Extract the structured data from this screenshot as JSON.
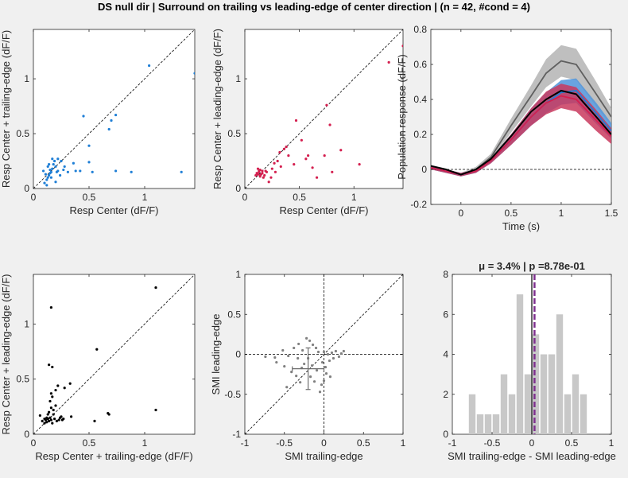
{
  "figure_title": "DS null dir | Surround on trailing vs leading-edge of center direction | (n = 42, #cond = 4)",
  "colors": {
    "background": "#f0f0f0",
    "axes": "#ffffff",
    "axis_line": "#262626",
    "blue": "#1f7fd6",
    "red": "#d41f4f",
    "black": "#000000",
    "gray_dots": "#808080",
    "hist_bars": "#c8c8c8",
    "mean_line": "#7e2f8e"
  },
  "chart_data": [
    {
      "type": "scatter",
      "xlabel": "Resp Center (dF/F)",
      "ylabel": "Resp Center + trailing-edge (dF/F)",
      "xlim": [
        0,
        1.45
      ],
      "ylim": [
        0,
        1.45
      ],
      "xticks": [
        "0",
        "0.5",
        "1"
      ],
      "yticks": [
        "0",
        "0.5",
        "1"
      ],
      "diagonal": true,
      "color": "#1f7fd6",
      "points": [
        [
          0.1,
          0.05
        ],
        [
          0.12,
          0.08
        ],
        [
          0.13,
          0.1
        ],
        [
          0.14,
          0.12
        ],
        [
          0.15,
          0.14
        ],
        [
          0.16,
          0.15
        ],
        [
          0.15,
          0.17
        ],
        [
          0.17,
          0.18
        ],
        [
          0.13,
          0.2
        ],
        [
          0.18,
          0.22
        ],
        [
          0.2,
          0.2
        ],
        [
          0.22,
          0.16
        ],
        [
          0.19,
          0.25
        ],
        [
          0.17,
          0.27
        ],
        [
          0.22,
          0.27
        ],
        [
          0.25,
          0.25
        ],
        [
          0.14,
          0.22
        ],
        [
          0.16,
          0.1
        ],
        [
          0.11,
          0.13
        ],
        [
          0.21,
          0.15
        ],
        [
          0.27,
          0.17
        ],
        [
          0.31,
          0.15
        ],
        [
          0.36,
          0.23
        ],
        [
          0.38,
          0.16
        ],
        [
          0.42,
          0.16
        ],
        [
          0.45,
          0.66
        ],
        [
          0.5,
          0.39
        ],
        [
          0.5,
          0.24
        ],
        [
          0.53,
          0.15
        ],
        [
          0.68,
          0.54
        ],
        [
          0.7,
          0.62
        ],
        [
          0.74,
          0.67
        ],
        [
          0.74,
          0.16
        ],
        [
          0.88,
          0.15
        ],
        [
          1.04,
          1.12
        ],
        [
          1.33,
          0.15
        ],
        [
          1.45,
          1.05
        ],
        [
          0.12,
          0.03
        ],
        [
          0.2,
          0.06
        ],
        [
          0.24,
          0.12
        ],
        [
          0.28,
          0.2
        ],
        [
          0.09,
          0.16
        ]
      ]
    },
    {
      "type": "scatter",
      "xlabel": "Resp Center (dF/F)",
      "ylabel": "Resp Center + leading-edge (dF/F)",
      "xlim": [
        0,
        1.45
      ],
      "ylim": [
        0,
        1.45
      ],
      "xticks": [
        "0",
        "0.5",
        "1"
      ],
      "yticks": [
        "0",
        "0.5",
        "1"
      ],
      "diagonal": true,
      "color": "#d41f4f",
      "points": [
        [
          0.1,
          0.12
        ],
        [
          0.11,
          0.14
        ],
        [
          0.12,
          0.13
        ],
        [
          0.13,
          0.15
        ],
        [
          0.14,
          0.12
        ],
        [
          0.15,
          0.13
        ],
        [
          0.16,
          0.14
        ],
        [
          0.12,
          0.18
        ],
        [
          0.14,
          0.17
        ],
        [
          0.17,
          0.1
        ],
        [
          0.18,
          0.12
        ],
        [
          0.2,
          0.15
        ],
        [
          0.22,
          0.06
        ],
        [
          0.25,
          0.18
        ],
        [
          0.27,
          0.23
        ],
        [
          0.3,
          0.25
        ],
        [
          0.33,
          0.2
        ],
        [
          0.36,
          0.36
        ],
        [
          0.4,
          0.3
        ],
        [
          0.45,
          0.22
        ],
        [
          0.47,
          0.62
        ],
        [
          0.52,
          0.44
        ],
        [
          0.56,
          0.27
        ],
        [
          0.58,
          0.3
        ],
        [
          0.62,
          0.19
        ],
        [
          0.66,
          0.1
        ],
        [
          0.73,
          0.3
        ],
        [
          0.75,
          0.76
        ],
        [
          0.78,
          0.58
        ],
        [
          0.8,
          0.15
        ],
        [
          0.88,
          0.35
        ],
        [
          1.05,
          0.22
        ],
        [
          1.32,
          1.15
        ],
        [
          1.45,
          1.3
        ],
        [
          0.13,
          0.16
        ],
        [
          0.14,
          0.11
        ],
        [
          0.16,
          0.16
        ],
        [
          0.19,
          0.16
        ],
        [
          0.24,
          0.1
        ],
        [
          0.28,
          0.15
        ],
        [
          0.32,
          0.33
        ],
        [
          0.38,
          0.38
        ]
      ]
    },
    {
      "type": "line",
      "xlabel": "Time (s)",
      "ylabel": "Population response (dF/F)",
      "xlim": [
        -0.3,
        1.5
      ],
      "ylim": [
        -0.2,
        0.8
      ],
      "xticks": [
        "0",
        "0.5",
        "1",
        "1.5"
      ],
      "yticks": [
        "-0.2",
        "0",
        "0.2",
        "0.4",
        "0.6",
        "0.8"
      ],
      "x": [
        -0.3,
        -0.15,
        0,
        0.15,
        0.3,
        0.5,
        0.7,
        0.85,
        1.0,
        1.15,
        1.35,
        1.5
      ],
      "series": [
        {
          "color": "#5f5f5f",
          "band": "#b4b4b4",
          "values": [
            0.01,
            -0.01,
            -0.03,
            0.0,
            0.07,
            0.25,
            0.42,
            0.55,
            0.62,
            0.6,
            0.43,
            0.3
          ],
          "sem": [
            0.01,
            0.01,
            0.01,
            0.015,
            0.02,
            0.04,
            0.06,
            0.08,
            0.09,
            0.09,
            0.07,
            0.05
          ]
        },
        {
          "color": "#1f7fd6",
          "band": "#4f94da",
          "values": [
            0.01,
            -0.01,
            -0.03,
            -0.01,
            0.05,
            0.17,
            0.3,
            0.38,
            0.44,
            0.45,
            0.32,
            0.22
          ],
          "sem": [
            0.01,
            0.01,
            0.01,
            0.01,
            0.015,
            0.03,
            0.05,
            0.06,
            0.07,
            0.07,
            0.06,
            0.045
          ]
        },
        {
          "color": "#d41f4f",
          "band": "#c93a5e",
          "values": [
            0.01,
            -0.01,
            -0.03,
            -0.01,
            0.05,
            0.17,
            0.3,
            0.38,
            0.42,
            0.4,
            0.28,
            0.19
          ],
          "sem": [
            0.01,
            0.01,
            0.01,
            0.01,
            0.015,
            0.03,
            0.05,
            0.065,
            0.07,
            0.07,
            0.06,
            0.045
          ]
        },
        {
          "color": "#000000",
          "band": null,
          "values": [
            0.02,
            0.0,
            -0.03,
            0.0,
            0.06,
            0.19,
            0.33,
            0.4,
            0.45,
            0.43,
            0.3,
            0.2
          ],
          "sem": null
        }
      ],
      "zero_line": true
    },
    {
      "type": "scatter",
      "xlabel": "Resp Center + trailing-edge (dF/F)",
      "ylabel": "Resp Center + leading-edge (dF/F)",
      "xlim": [
        0,
        1.45
      ],
      "ylim": [
        0,
        1.45
      ],
      "xticks": [
        "0",
        "0.5",
        "1"
      ],
      "yticks": [
        "0",
        "0.5",
        "1"
      ],
      "diagonal": true,
      "color": "#000000",
      "points": [
        [
          0.06,
          0.17
        ],
        [
          0.08,
          0.12
        ],
        [
          0.1,
          0.1
        ],
        [
          0.12,
          0.11
        ],
        [
          0.13,
          0.14
        ],
        [
          0.14,
          0.12
        ],
        [
          0.15,
          0.15
        ],
        [
          0.16,
          0.13
        ],
        [
          0.17,
          0.1
        ],
        [
          0.18,
          0.18
        ],
        [
          0.14,
          0.2
        ],
        [
          0.16,
          0.24
        ],
        [
          0.18,
          0.22
        ],
        [
          0.2,
          0.26
        ],
        [
          0.15,
          0.3
        ],
        [
          0.17,
          0.34
        ],
        [
          0.2,
          0.4
        ],
        [
          0.22,
          0.44
        ],
        [
          0.16,
          0.37
        ],
        [
          0.14,
          0.63
        ],
        [
          0.17,
          0.61
        ],
        [
          0.16,
          1.15
        ],
        [
          0.24,
          0.15
        ],
        [
          0.26,
          0.13
        ],
        [
          0.28,
          0.42
        ],
        [
          0.33,
          0.46
        ],
        [
          0.34,
          0.16
        ],
        [
          0.23,
          0.13
        ],
        [
          0.25,
          0.16
        ],
        [
          0.55,
          0.12
        ],
        [
          0.57,
          0.77
        ],
        [
          0.67,
          0.19
        ],
        [
          0.68,
          0.18
        ],
        [
          1.1,
          0.22
        ],
        [
          1.1,
          1.33
        ],
        [
          0.11,
          0.13
        ],
        [
          0.12,
          0.15
        ],
        [
          0.19,
          0.14
        ],
        [
          0.21,
          0.12
        ],
        [
          0.1,
          0.14
        ],
        [
          0.13,
          0.18
        ],
        [
          0.27,
          0.14
        ]
      ]
    },
    {
      "type": "scatter",
      "xlabel": "SMI trailing-edge",
      "ylabel": "SMI leading-edge",
      "xlim": [
        -1,
        1
      ],
      "ylim": [
        -1,
        1
      ],
      "xticks": [
        "-1",
        "-0.5",
        "0",
        "0.5",
        "1"
      ],
      "yticks": [
        "-1",
        "-0.5",
        "0",
        "0.5",
        "1"
      ],
      "diagonal": true,
      "crosshair": true,
      "color": "#808080",
      "error_cross": {
        "x": -0.2,
        "y": -0.18,
        "xerr": 0.2,
        "yerr": 0.26
      },
      "points": [
        [
          -0.74,
          -0.03
        ],
        [
          -0.62,
          -0.04
        ],
        [
          -0.52,
          0.05
        ],
        [
          -0.5,
          -0.15
        ],
        [
          -0.47,
          -0.41
        ],
        [
          -0.45,
          -0.02
        ],
        [
          -0.41,
          -0.22
        ],
        [
          -0.38,
          0.08
        ],
        [
          -0.35,
          -0.27
        ],
        [
          -0.32,
          0.13
        ],
        [
          -0.3,
          -0.35
        ],
        [
          -0.27,
          0.05
        ],
        [
          -0.25,
          -0.12
        ],
        [
          -0.22,
          0.2
        ],
        [
          -0.2,
          -0.05
        ],
        [
          -0.18,
          0.17
        ],
        [
          -0.17,
          -0.28
        ],
        [
          -0.15,
          -0.14
        ],
        [
          -0.12,
          -0.34
        ],
        [
          -0.1,
          0.08
        ],
        [
          -0.09,
          -0.2
        ],
        [
          -0.07,
          0.03
        ],
        [
          -0.05,
          -0.47
        ],
        [
          -0.03,
          -0.38
        ],
        [
          -0.02,
          -0.1
        ],
        [
          0.0,
          0.03
        ],
        [
          0.02,
          -0.16
        ],
        [
          0.03,
          -0.24
        ],
        [
          0.05,
          0.0
        ],
        [
          0.07,
          -0.08
        ],
        [
          0.1,
          0.02
        ],
        [
          0.12,
          -0.05
        ],
        [
          0.15,
          0.04
        ],
        [
          0.19,
          -0.03
        ],
        [
          0.22,
          0.01
        ],
        [
          0.25,
          0.04
        ],
        [
          -0.28,
          -0.17
        ],
        [
          -0.33,
          -0.05
        ],
        [
          0.0,
          -0.33
        ],
        [
          -0.6,
          -0.1
        ],
        [
          0.08,
          -0.28
        ],
        [
          -0.14,
          0.12
        ]
      ]
    },
    {
      "type": "bar",
      "title": "μ = 3.4% | p =8.78e-01",
      "xlabel": "SMI trailing-edge - SMI leading-edge",
      "ylabel": "",
      "xlim": [
        -1,
        1
      ],
      "ylim": [
        0,
        8
      ],
      "xticks": [
        "-1",
        "-0.5",
        "0",
        "0.5",
        "1"
      ],
      "yticks": [
        "0",
        "2",
        "4",
        "6",
        "8"
      ],
      "bin_edges": [
        -0.8,
        -0.7,
        -0.6,
        -0.5,
        -0.4,
        -0.3,
        -0.2,
        -0.1,
        0.0,
        0.1,
        0.2,
        0.3,
        0.4,
        0.5,
        0.6,
        0.7
      ],
      "values": [
        2,
        1,
        1,
        1,
        3,
        2,
        7,
        3,
        5,
        4,
        4,
        6,
        2,
        3,
        2
      ],
      "mean": 0.034,
      "zero_line": true
    }
  ]
}
